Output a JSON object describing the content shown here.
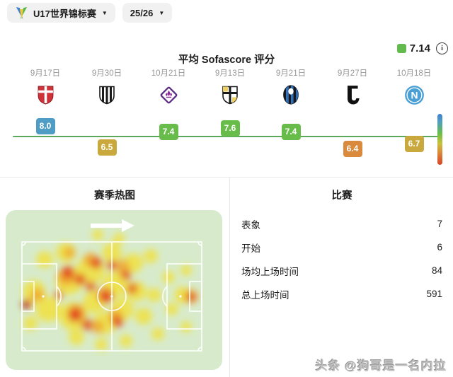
{
  "toolbar": {
    "tournament_label": "U17世界锦标赛",
    "tournament_icon": "tournament-logo-icon",
    "season_label": "25/26",
    "caret_icon": "chevron-down-icon"
  },
  "ratings": {
    "title": "平均 Sofascore 评分",
    "average": "7.14",
    "average_color": "#64bb4d",
    "info_icon": "info-icon",
    "baseline_color": "#5ca95c"
  },
  "chart_data": {
    "type": "scatter",
    "title": "平均 Sofascore 评分",
    "baseline": 7.14,
    "x": [
      "9月17日",
      "9月30日",
      "10月21日",
      "9月13日",
      "9月21日",
      "9月27日",
      "10月18日"
    ],
    "series": [
      {
        "name": "match-rating",
        "values": [
          8.0,
          6.5,
          7.4,
          7.6,
          7.4,
          6.4,
          6.7
        ]
      }
    ],
    "matches": [
      {
        "date": "9月17日",
        "team_icon": "monza-crest-icon",
        "rating": 8.0,
        "color": "#4f9cc4"
      },
      {
        "date": "9月30日",
        "team_icon": "cesena-crest-icon",
        "rating": 6.5,
        "color": "#c9a83d"
      },
      {
        "date": "10月21日",
        "team_icon": "fiorentina-crest-icon",
        "rating": 7.4,
        "color": "#68bd4a"
      },
      {
        "date": "9月13日",
        "team_icon": "parma-crest-icon",
        "rating": 7.6,
        "color": "#68bd4a"
      },
      {
        "date": "9月21日",
        "team_icon": "atalanta-crest-icon",
        "rating": 7.4,
        "color": "#68bd4a"
      },
      {
        "date": "9月27日",
        "team_icon": "juventus-crest-icon",
        "rating": 6.4,
        "color": "#d98a3d"
      },
      {
        "date": "10月18日",
        "team_icon": "napoli-crest-icon",
        "rating": 6.7,
        "color": "#c9a83d"
      }
    ],
    "scale_colors": [
      "#3f7ed0",
      "#4f9cc4",
      "#68bd4a",
      "#c9c23d",
      "#d98a3d",
      "#d84327"
    ]
  },
  "heatmap": {
    "title": "赛季热图",
    "direction_icon": "arrow-right-icon",
    "pitch_background": "#d7ebcc",
    "blob_colors": {
      "yellow": "#f2e035",
      "orange": "#f0a028",
      "red": "#e03a20",
      "dark": "#9c1f12"
    },
    "blobs": {
      "yellow": [
        [
          40,
          115,
          16
        ],
        [
          55,
          70,
          12
        ],
        [
          60,
          140,
          18
        ],
        [
          85,
          60,
          14
        ],
        [
          90,
          100,
          20
        ],
        [
          95,
          150,
          20
        ],
        [
          120,
          85,
          20
        ],
        [
          125,
          130,
          16
        ],
        [
          140,
          160,
          16
        ],
        [
          150,
          60,
          14
        ],
        [
          155,
          105,
          18
        ],
        [
          165,
          140,
          16
        ],
        [
          180,
          75,
          14
        ],
        [
          185,
          115,
          14
        ],
        [
          195,
          150,
          12
        ],
        [
          205,
          65,
          10
        ],
        [
          210,
          120,
          10
        ],
        [
          215,
          175,
          9
        ],
        [
          230,
          95,
          9
        ],
        [
          235,
          140,
          9
        ],
        [
          250,
          120,
          12
        ],
        [
          130,
          35,
          8
        ],
        [
          160,
          40,
          8
        ],
        [
          100,
          180,
          11
        ],
        [
          135,
          190,
          9
        ],
        [
          170,
          185,
          9
        ],
        [
          35,
          160,
          10
        ],
        [
          255,
          85,
          8
        ],
        [
          255,
          165,
          8
        ]
      ],
      "orange": [
        [
          45,
          120,
          9
        ],
        [
          85,
          95,
          12
        ],
        [
          100,
          145,
          12
        ],
        [
          120,
          70,
          10
        ],
        [
          140,
          120,
          12
        ],
        [
          155,
          150,
          10
        ],
        [
          165,
          80,
          10
        ],
        [
          90,
          60,
          8
        ],
        [
          130,
          165,
          9
        ],
        [
          180,
          110,
          8
        ],
        [
          262,
          122,
          10
        ]
      ],
      "red": [
        [
          30,
          133,
          7
        ],
        [
          88,
          88,
          9
        ],
        [
          105,
          98,
          8
        ],
        [
          98,
          148,
          10
        ],
        [
          115,
          162,
          8
        ],
        [
          128,
          75,
          8
        ],
        [
          142,
          122,
          9
        ],
        [
          150,
          78,
          7
        ],
        [
          158,
          158,
          8
        ],
        [
          170,
          92,
          7
        ],
        [
          178,
          112,
          6
        ],
        [
          262,
          123,
          6
        ],
        [
          120,
          108,
          7
        ],
        [
          75,
          120,
          6
        ]
      ],
      "dark": [
        [
          28,
          134,
          5
        ]
      ]
    }
  },
  "stats": {
    "title": "比赛",
    "rows": [
      {
        "label": "表象",
        "value": "7"
      },
      {
        "label": "开始",
        "value": "6"
      },
      {
        "label": "场均上场时间",
        "value": "84"
      },
      {
        "label": "总上场时间",
        "value": "591"
      }
    ]
  },
  "watermark": {
    "text": "头条 @狗哥是一名内拉"
  }
}
